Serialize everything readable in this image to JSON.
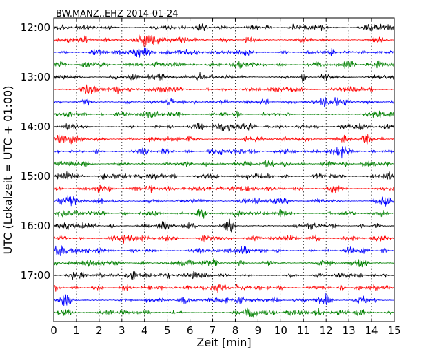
{
  "chart_data": {
    "type": "line",
    "title": "BW.MANZ..EHZ 2014-01-24",
    "xlabel": "Zeit  [min]",
    "ylabel": "UTC (Lokalzeit = UTC + 01:00)",
    "xlim": [
      0,
      15
    ],
    "x_ticks": [
      0,
      1,
      2,
      3,
      4,
      5,
      6,
      7,
      8,
      9,
      10,
      11,
      12,
      13,
      14,
      15
    ],
    "y_ticks": [
      "12:00",
      "13:00",
      "14:00",
      "15:00",
      "16:00",
      "17:00"
    ],
    "grid": "vertical dotted",
    "rows_per_hour": 4,
    "interval_minutes": 15,
    "start_time": "12:00",
    "end_time": "18:00",
    "trace_colors": [
      "#000000",
      "#ff0000",
      "#0000ff",
      "#008000"
    ]
  }
}
